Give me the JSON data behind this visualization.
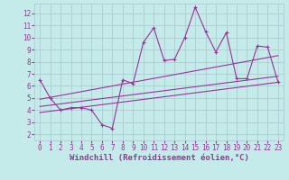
{
  "xlabel": "Windchill (Refroidissement éolien,°C)",
  "xlim": [
    -0.5,
    23.5
  ],
  "ylim": [
    1.5,
    12.8
  ],
  "yticks": [
    2,
    3,
    4,
    5,
    6,
    7,
    8,
    9,
    10,
    11,
    12
  ],
  "xticks": [
    0,
    1,
    2,
    3,
    4,
    5,
    6,
    7,
    8,
    9,
    10,
    11,
    12,
    13,
    14,
    15,
    16,
    17,
    18,
    19,
    20,
    21,
    22,
    23
  ],
  "background_color": "#c5eaea",
  "grid_color": "#a8c8d0",
  "line_color": "#993399",
  "data_x": [
    0,
    1,
    2,
    3,
    4,
    5,
    6,
    7,
    8,
    9,
    10,
    11,
    12,
    13,
    14,
    15,
    16,
    17,
    18,
    19,
    20,
    21,
    22,
    23
  ],
  "data_y": [
    6.5,
    5.0,
    4.0,
    4.2,
    4.2,
    4.0,
    2.8,
    2.5,
    6.5,
    6.2,
    9.6,
    10.8,
    8.1,
    8.2,
    10.0,
    12.5,
    10.5,
    8.8,
    10.4,
    6.6,
    6.6,
    9.3,
    9.2,
    6.3
  ],
  "trend1_x": [
    0,
    23
  ],
  "trend1_y": [
    3.8,
    6.3
  ],
  "trend2_x": [
    0,
    23
  ],
  "trend2_y": [
    4.3,
    6.8
  ],
  "trend3_x": [
    0,
    23
  ],
  "trend3_y": [
    4.9,
    8.5
  ],
  "tick_fontsize": 5.5,
  "xlabel_fontsize": 6.5,
  "line_width": 0.8,
  "marker": "+"
}
